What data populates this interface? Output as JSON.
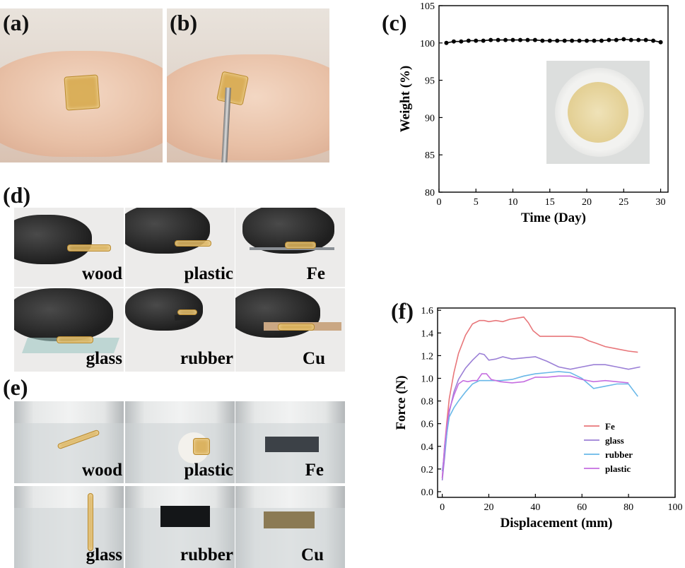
{
  "panels": {
    "a": "(a)",
    "b": "(b)",
    "c": "(c)",
    "d": "(d)",
    "e": "(e)",
    "f": "(f)"
  },
  "adhesion_tiles": [
    "wood",
    "plastic",
    "Fe",
    "glass",
    "rubber",
    "Cu"
  ],
  "underwater_tiles": [
    "wood",
    "plastic",
    "Fe",
    "glass",
    "rubber",
    "Cu"
  ],
  "colors": {
    "fe": "#e8767a",
    "glass": "#9b7fd6",
    "rubber": "#6ab8e8",
    "plastic": "#c56ee0",
    "weight_line": "#000000",
    "gel": "#d6a848"
  },
  "chart_data": [
    {
      "type": "line",
      "panel": "c",
      "xlabel": "Time (Day)",
      "ylabel": "Weight (%)",
      "xlim": [
        0,
        31
      ],
      "ylim": [
        80,
        105
      ],
      "xticks": [
        0,
        5,
        10,
        15,
        20,
        25,
        30
      ],
      "yticks": [
        80,
        85,
        90,
        95,
        100,
        105
      ],
      "series": [
        {
          "x": [
            1,
            2,
            3,
            4,
            5,
            6,
            7,
            8,
            9,
            10,
            11,
            12,
            13,
            14,
            15,
            16,
            17,
            18,
            19,
            20,
            21,
            22,
            23,
            24,
            25,
            26,
            27,
            28,
            29,
            30
          ],
          "values": [
            100.0,
            100.2,
            100.2,
            100.3,
            100.3,
            100.3,
            100.4,
            100.4,
            100.4,
            100.4,
            100.4,
            100.4,
            100.4,
            100.3,
            100.3,
            100.3,
            100.3,
            100.3,
            100.3,
            100.3,
            100.3,
            100.3,
            100.4,
            100.4,
            100.5,
            100.4,
            100.4,
            100.4,
            100.3,
            100.1
          ]
        }
      ],
      "grid": false
    },
    {
      "type": "line",
      "panel": "f",
      "xlabel": "Displacement (mm)",
      "ylabel": "Force (N)",
      "xlim": [
        -2,
        100
      ],
      "ylim": [
        -0.05,
        1.62
      ],
      "xticks": [
        0,
        20,
        40,
        60,
        80,
        100
      ],
      "yticks": [
        0.0,
        0.2,
        0.4,
        0.6,
        0.8,
        1.0,
        1.2,
        1.4,
        1.6
      ],
      "legend_position": "lower-right",
      "series": [
        {
          "name": "Fe",
          "x": [
            0,
            1,
            2,
            3,
            5,
            7,
            10,
            13,
            16,
            18,
            20,
            23,
            26,
            29,
            32,
            35,
            37,
            39,
            42,
            46,
            50,
            55,
            60,
            63,
            66,
            70,
            75,
            80,
            84
          ],
          "values": [
            0.12,
            0.4,
            0.62,
            0.82,
            1.05,
            1.22,
            1.38,
            1.48,
            1.51,
            1.51,
            1.5,
            1.51,
            1.5,
            1.52,
            1.53,
            1.54,
            1.49,
            1.42,
            1.37,
            1.37,
            1.37,
            1.37,
            1.36,
            1.33,
            1.31,
            1.28,
            1.26,
            1.24,
            1.23
          ]
        },
        {
          "name": "glass",
          "x": [
            0,
            1,
            2,
            3,
            5,
            7,
            10,
            13,
            16,
            18,
            20,
            23,
            26,
            30,
            35,
            40,
            45,
            50,
            55,
            60,
            65,
            70,
            75,
            80,
            85
          ],
          "values": [
            0.1,
            0.3,
            0.52,
            0.7,
            0.88,
            0.99,
            1.09,
            1.16,
            1.22,
            1.21,
            1.16,
            1.17,
            1.19,
            1.17,
            1.18,
            1.19,
            1.15,
            1.1,
            1.08,
            1.1,
            1.12,
            1.12,
            1.1,
            1.08,
            1.1
          ]
        },
        {
          "name": "rubber",
          "x": [
            0,
            1,
            2,
            3,
            5,
            7,
            10,
            13,
            16,
            20,
            25,
            30,
            35,
            40,
            45,
            50,
            55,
            60,
            65,
            70,
            75,
            80,
            84
          ],
          "values": [
            0.18,
            0.35,
            0.52,
            0.66,
            0.74,
            0.8,
            0.88,
            0.95,
            0.98,
            0.98,
            0.98,
            0.99,
            1.02,
            1.04,
            1.05,
            1.06,
            1.05,
            1.0,
            0.91,
            0.93,
            0.95,
            0.95,
            0.84
          ]
        },
        {
          "name": "plastic",
          "x": [
            0,
            1,
            2,
            3,
            5,
            7,
            9,
            11,
            13,
            15,
            17,
            19,
            21,
            25,
            30,
            35,
            40,
            45,
            50,
            55,
            60,
            65,
            70,
            75,
            80
          ],
          "values": [
            0.12,
            0.4,
            0.58,
            0.72,
            0.85,
            0.95,
            0.98,
            0.97,
            0.98,
            0.98,
            1.04,
            1.04,
            0.99,
            0.97,
            0.96,
            0.97,
            1.01,
            1.01,
            1.02,
            1.02,
            0.99,
            0.97,
            0.98,
            0.97,
            0.96
          ]
        }
      ]
    }
  ]
}
